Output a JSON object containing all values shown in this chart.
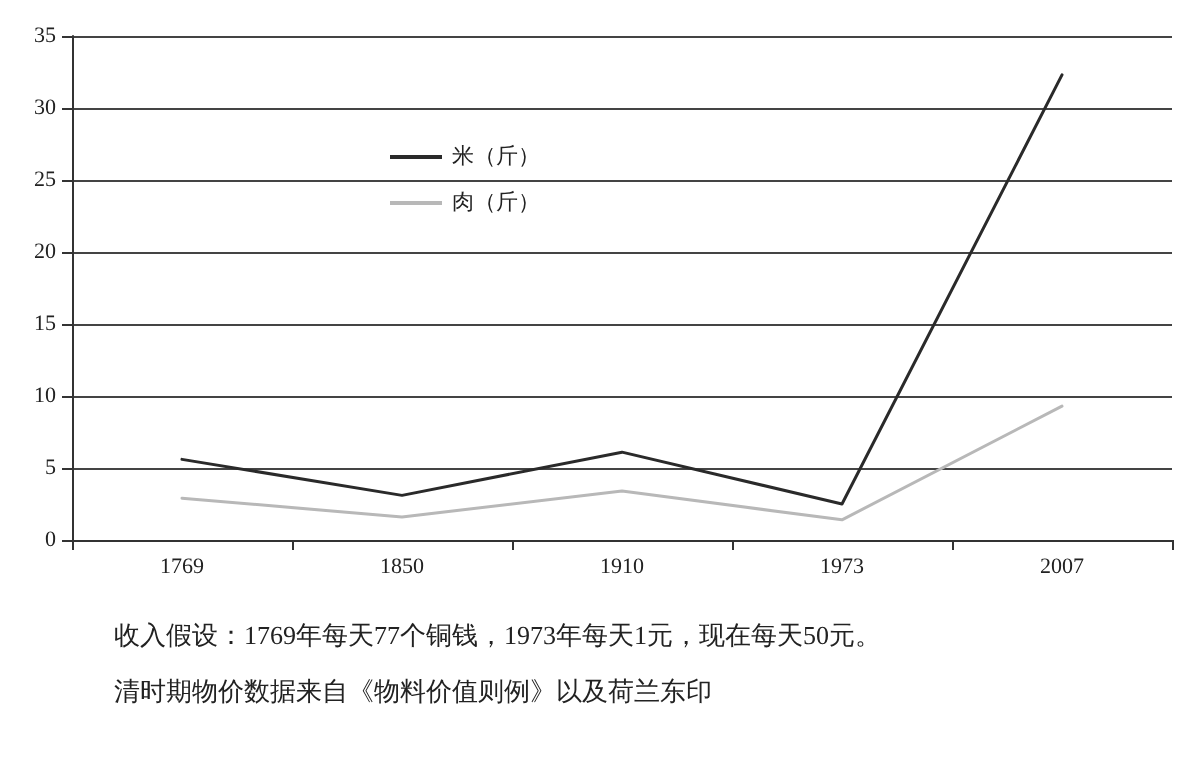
{
  "chart_data": {
    "type": "line",
    "categories": [
      "1769",
      "1850",
      "1910",
      "1973",
      "2007"
    ],
    "series": [
      {
        "name": "米（斤）",
        "color": "#2a2a2a",
        "values": [
          5.6,
          3.1,
          6.1,
          2.5,
          32.3
        ]
      },
      {
        "name": "肉（斤）",
        "color": "#b8b8b8",
        "values": [
          2.9,
          1.6,
          3.4,
          1.4,
          9.3
        ]
      }
    ],
    "ylim": [
      0,
      35
    ],
    "yticks": [
      0,
      5,
      10,
      15,
      20,
      25,
      30,
      35
    ],
    "grid": "y",
    "legend": "top left",
    "marker": "none",
    "line_style": "solid",
    "annotations": [
      "收入假设：1769年每天77个铜钱，1973年每天1元，现在每天50元。",
      "清时期物价数据来自《物料价值则例》以及荷兰东印"
    ]
  }
}
